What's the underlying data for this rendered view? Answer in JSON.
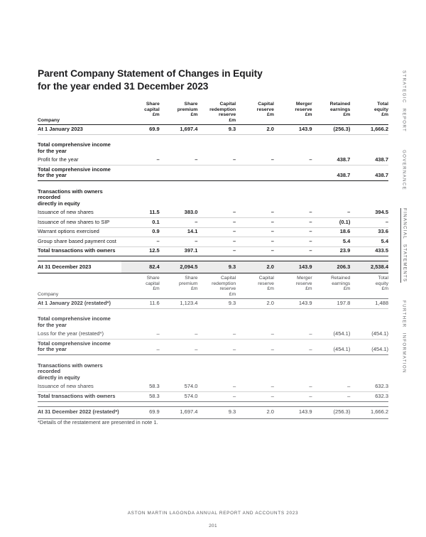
{
  "page": {
    "title_line1": "Parent Company Statement of Changes in Equity",
    "title_line2": "for the year ended 31 December 2023",
    "footnote": "*Details of the restatement are presented in note 1.",
    "shade_color": "#ececec",
    "text_color": "#1d1d1f"
  },
  "footer": {
    "report_line": "ASTON MARTIN LAGONDA ANNUAL REPORT AND ACCOUNTS 2023",
    "page_number": "201"
  },
  "sidebar": {
    "items": [
      {
        "label": "STRATEGIC REPORT",
        "active": false
      },
      {
        "label": "GOVERNANCE",
        "active": false
      },
      {
        "label": "FINANCIAL STATEMENTS",
        "active": true
      },
      {
        "label": "FURTHER INFORMATION",
        "active": false
      }
    ]
  },
  "tables": [
    {
      "year": "2023",
      "header": {
        "label": "Company",
        "columns": [
          [
            "Share",
            "capital",
            "£m"
          ],
          [
            "Share",
            "premium",
            "£m"
          ],
          [
            "Capital",
            "redemption",
            "reserve",
            "£m"
          ],
          [
            "Capital",
            "reserve",
            "£m"
          ],
          [
            "Merger",
            "reserve",
            "£m"
          ],
          [
            "Retained",
            "earnings",
            "£m"
          ],
          [
            "Total",
            "equity",
            "£m"
          ]
        ]
      },
      "rows": [
        {
          "style": "open",
          "label": [
            "At 1 January 2023"
          ],
          "values": [
            "69.9",
            "1,697.4",
            "9.3",
            "2.0",
            "143.9",
            "(256.3)",
            "1,666.2"
          ]
        },
        {
          "style": "section",
          "label": [
            "Total comprehensive income",
            "for the year"
          ],
          "values": null
        },
        {
          "style": "data",
          "label": [
            "Profit for the year"
          ],
          "values": [
            "–",
            "–",
            "–",
            "–",
            "–",
            "438.7",
            "438.7"
          ]
        },
        {
          "style": "subtotal",
          "label": [
            "Total comprehensive income",
            "for the year"
          ],
          "values": [
            "",
            "",
            "",
            "",
            "",
            "438.7",
            "438.7"
          ]
        },
        {
          "style": "section",
          "label": [
            "Transactions with owners recorded",
            "directly in equity"
          ],
          "values": null
        },
        {
          "style": "data",
          "label": [
            "Issuance of new shares"
          ],
          "values": [
            "11.5",
            "383.0",
            "–",
            "–",
            "–",
            "–",
            "394.5"
          ]
        },
        {
          "style": "data",
          "label": [
            "Issuance of new shares to SIP"
          ],
          "values": [
            "0.1",
            "–",
            "–",
            "–",
            "–",
            "(0.1)",
            "–"
          ]
        },
        {
          "style": "data",
          "label": [
            "Warrant options exercised"
          ],
          "values": [
            "0.9",
            "14.1",
            "–",
            "–",
            "–",
            "18.6",
            "33.6"
          ]
        },
        {
          "style": "data",
          "label": [
            "Group share based payment cost"
          ],
          "values": [
            "–",
            "–",
            "–",
            "–",
            "–",
            "5.4",
            "5.4"
          ]
        },
        {
          "style": "total",
          "label": [
            "Total transactions with owners"
          ],
          "values": [
            "12.5",
            "397.1",
            "–",
            "–",
            "–",
            "23.9",
            "433.5"
          ]
        },
        {
          "style": "grand",
          "shaded": true,
          "label": [
            "At 31 December 2023"
          ],
          "values": [
            "82.4",
            "2,094.5",
            "9.3",
            "2.0",
            "143.9",
            "206.3",
            "2,538.4"
          ]
        }
      ]
    },
    {
      "year": "2022",
      "header": {
        "label": "Company",
        "columns": [
          [
            "Share",
            "capital",
            "£m"
          ],
          [
            "Share",
            "premium",
            "£m"
          ],
          [
            "Capital",
            "redemption",
            "reserve",
            "£m"
          ],
          [
            "Capital",
            "reserve",
            "£m"
          ],
          [
            "Merger",
            "reserve",
            "£m"
          ],
          [
            "Retained",
            "earnings",
            "£m"
          ],
          [
            "Total",
            "equity",
            "£m"
          ]
        ]
      },
      "rows": [
        {
          "style": "open",
          "label": [
            "At 1 January 2022 (restated*)"
          ],
          "values": [
            "11.6",
            "1,123.4",
            "9.3",
            "2.0",
            "143.9",
            "197.8",
            "1,488"
          ]
        },
        {
          "style": "section",
          "label": [
            "Total comprehensive income",
            "for the year"
          ],
          "values": null
        },
        {
          "style": "data",
          "label": [
            "Loss for the year (restated*)"
          ],
          "values": [
            "–",
            "–",
            "–",
            "–",
            "–",
            "(454.1)",
            "(454.1)"
          ]
        },
        {
          "style": "subtotal",
          "label": [
            "Total comprehensive income",
            "for the year"
          ],
          "values": [
            "–",
            "–",
            "–",
            "–",
            "–",
            "(454.1)",
            "(454.1)"
          ]
        },
        {
          "style": "section",
          "label": [
            "Transactions with owners recorded",
            "directly in equity"
          ],
          "values": null
        },
        {
          "style": "data",
          "label": [
            "Issuance of new shares"
          ],
          "values": [
            "58.3",
            "574.0",
            "–",
            "–",
            "–",
            "–",
            "632.3"
          ]
        },
        {
          "style": "total",
          "label": [
            "Total transactions with owners"
          ],
          "values": [
            "58.3",
            "574.0",
            "–",
            "–",
            "–",
            "–",
            "632.3"
          ]
        },
        {
          "style": "grand",
          "shaded": false,
          "label": [
            "At 31 December 2022 (restated*)"
          ],
          "values": [
            "69.9",
            "1,697.4",
            "9.3",
            "2.0",
            "143.9",
            "(256.3)",
            "1,666.2"
          ]
        }
      ]
    }
  ]
}
